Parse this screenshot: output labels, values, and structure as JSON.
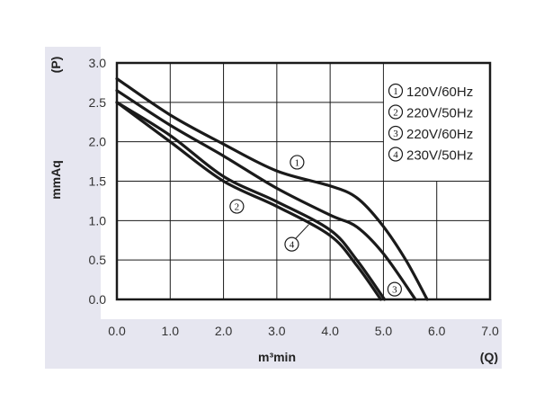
{
  "chart_data": {
    "type": "line",
    "title": "",
    "xlabel": "m³min",
    "xlabel_unit": "(Q)",
    "ylabel": "mmAq",
    "ylabel_unit": "(P)",
    "xlim": [
      0,
      7
    ],
    "ylim": [
      0,
      3
    ],
    "xticks": [
      "0.0",
      "1.0",
      "2.0",
      "3.0",
      "4.0",
      "5.0",
      "6.0",
      "7.0"
    ],
    "yticks": [
      "0.0",
      "0.5",
      "1.0",
      "1.5",
      "2.0",
      "2.5",
      "3.0"
    ],
    "grid": true,
    "legend_position": "top-right",
    "colors": {
      "background_band": "#e6e6f0",
      "line": "#1a1a1a"
    },
    "series": [
      {
        "name": "120V/60Hz",
        "marker": "1",
        "x": [
          0,
          1,
          2,
          3,
          4,
          4.5,
          4.96,
          5.42,
          5.82
        ],
        "y": [
          2.8,
          2.34,
          1.97,
          1.63,
          1.44,
          1.29,
          0.96,
          0.5,
          0
        ],
        "label_at": [
          3.38,
          1.74
        ]
      },
      {
        "name": "220V/50Hz",
        "marker": "2",
        "x": [
          0,
          1,
          2,
          3,
          4,
          4.5,
          4.95
        ],
        "y": [
          2.5,
          2.0,
          1.5,
          1.18,
          0.81,
          0.43,
          0
        ],
        "label_at": [
          2.25,
          1.18
        ]
      },
      {
        "name": "220V/60Hz",
        "marker": "3",
        "x": [
          0,
          1,
          2,
          3,
          4,
          4.5,
          5,
          5.6
        ],
        "y": [
          2.65,
          2.21,
          1.82,
          1.41,
          1.07,
          0.92,
          0.58,
          0
        ],
        "label_at": [
          5.21,
          0.13
        ]
      },
      {
        "name": "230V/50Hz",
        "marker": "4",
        "x": [
          0,
          1,
          2,
          3,
          4,
          4.5,
          5.02
        ],
        "y": [
          2.5,
          2.08,
          1.56,
          1.24,
          0.88,
          0.5,
          0
        ],
        "label_at": [
          3.28,
          0.7
        ],
        "leader_to": [
          3.6,
          0.95
        ]
      }
    ]
  }
}
